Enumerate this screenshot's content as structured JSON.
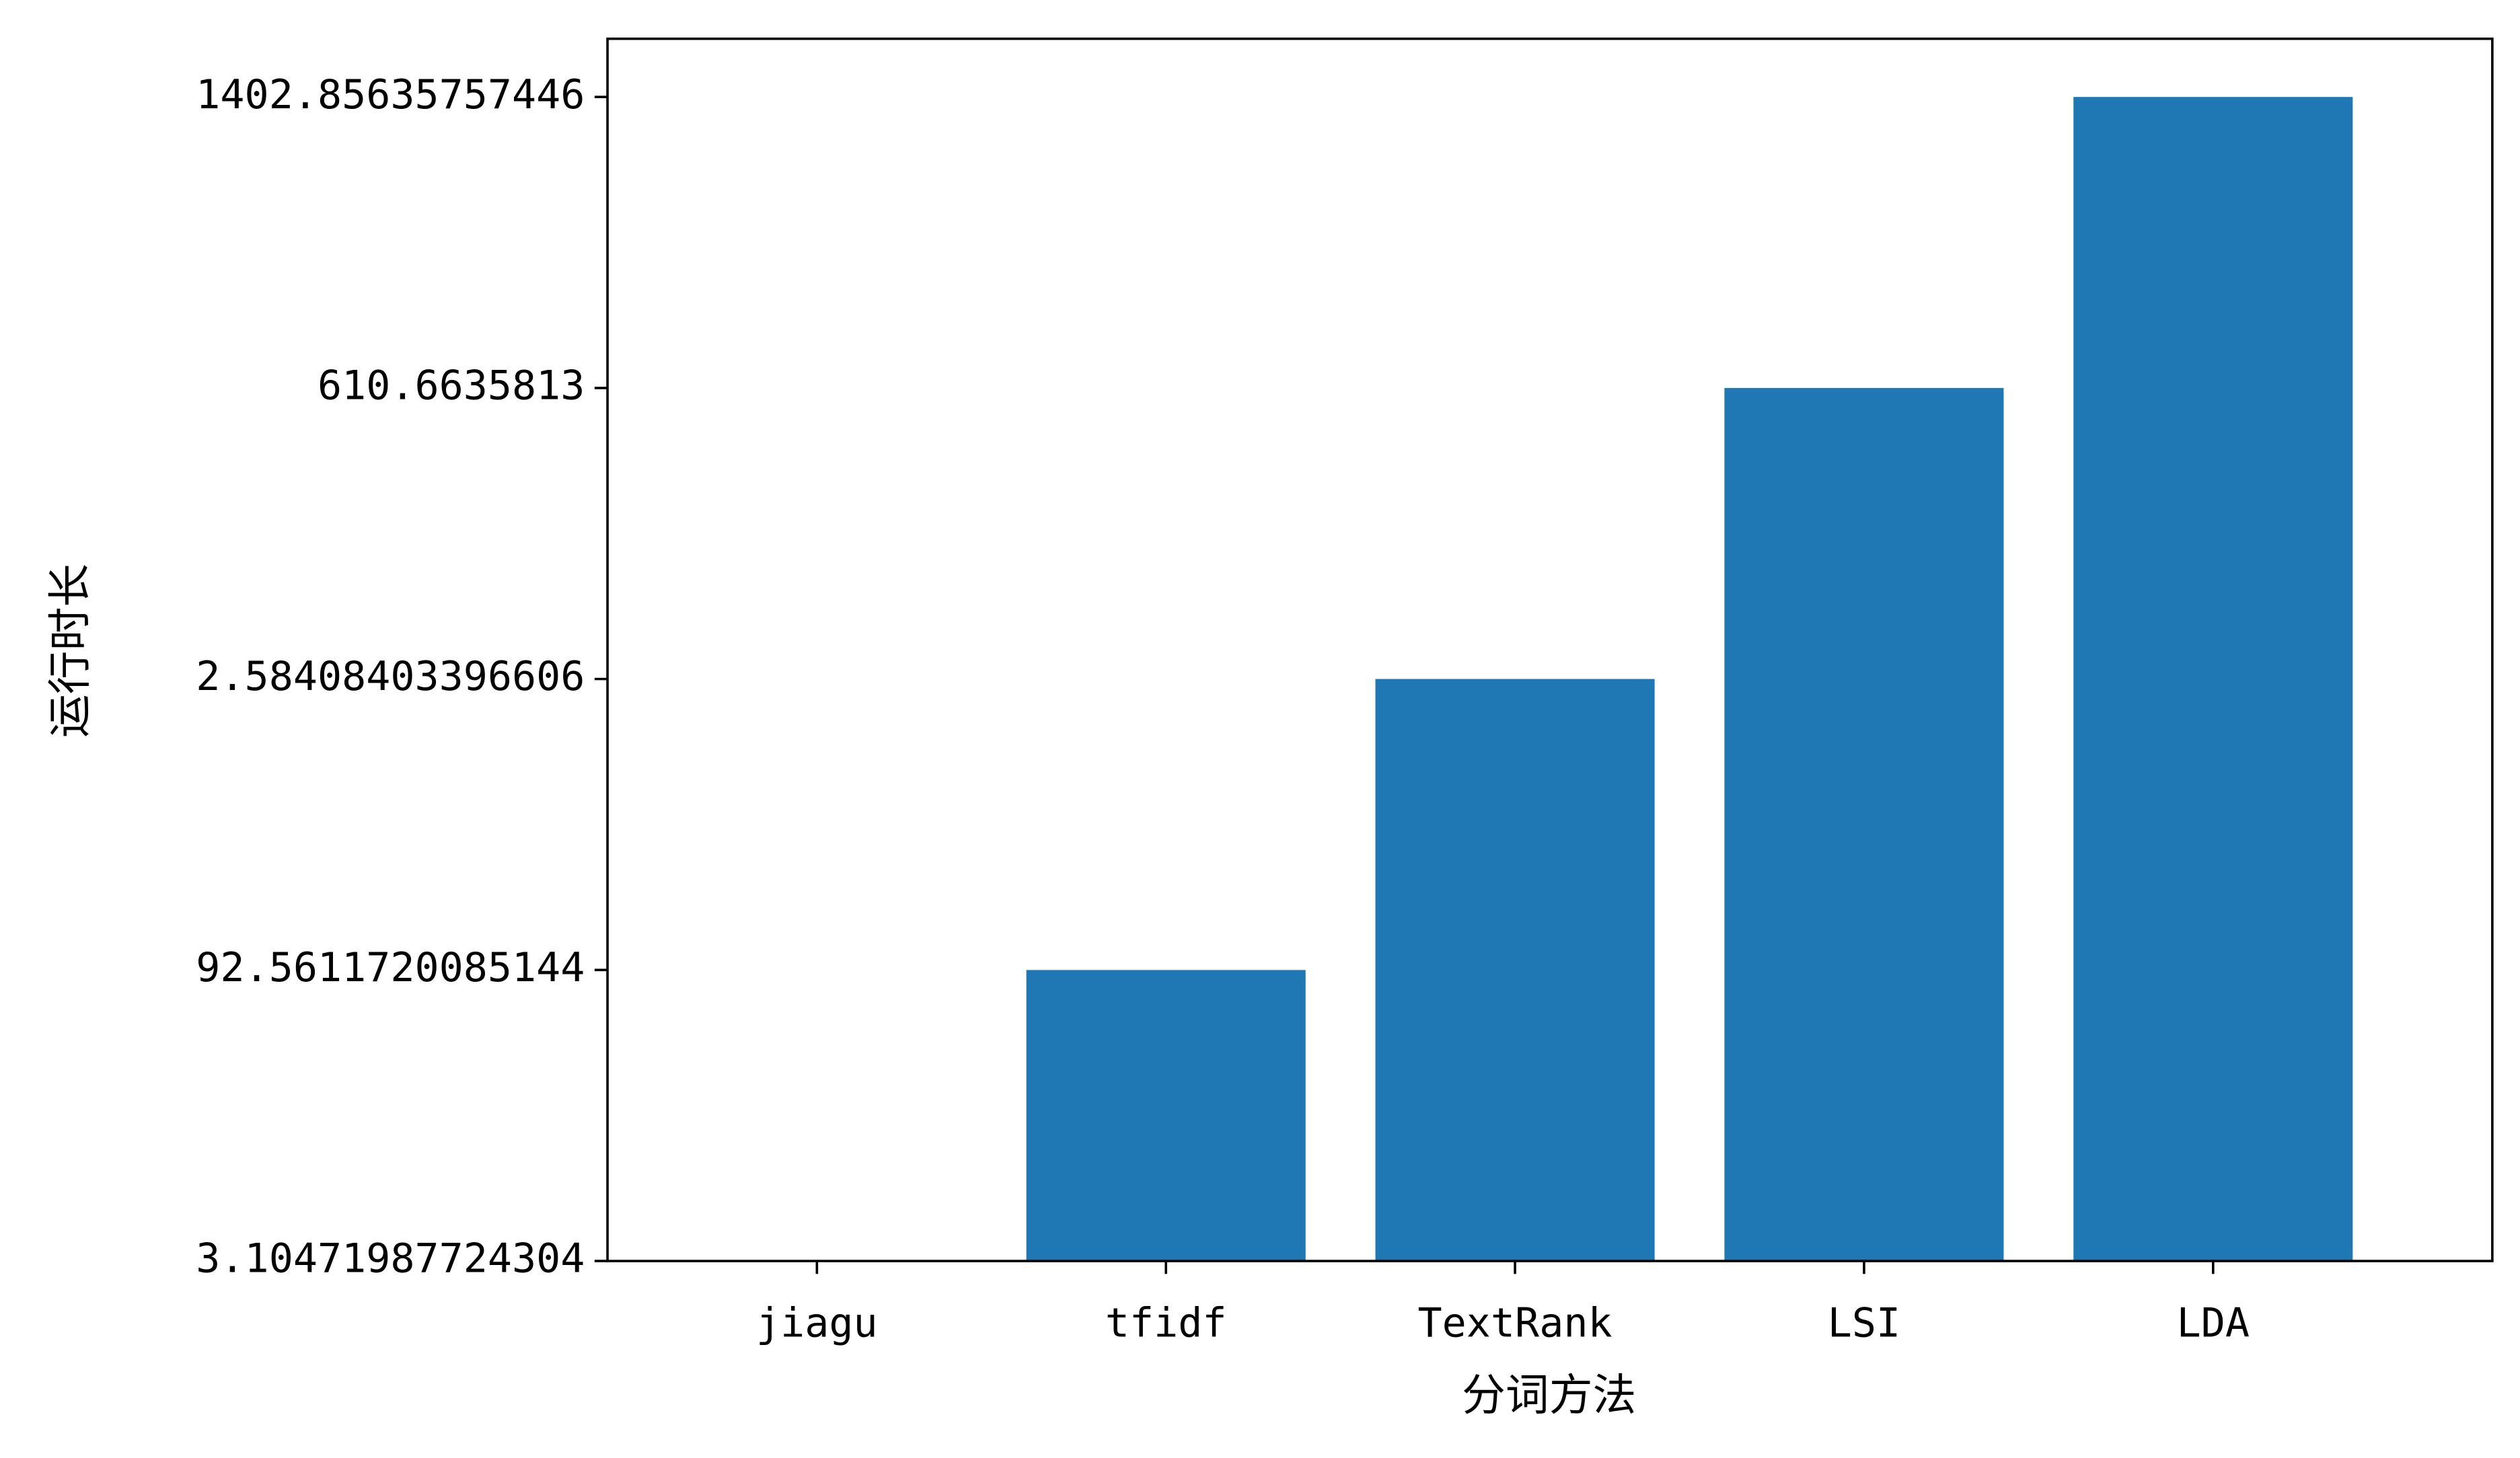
{
  "chart_data": {
    "type": "bar",
    "x_label": "分词方法",
    "y_label": "运行时长",
    "categories": [
      "jiagu",
      "tfidf",
      "TextRank",
      "LSI",
      "LDA"
    ],
    "values": [
      3.10471987724304,
      92.5611720085144,
      2.58408403396606,
      610.6635813,
      1402.85635757446
    ],
    "y_categories": [
      3.10471987724304,
      92.5611720085144,
      2.58408403396606,
      610.6635813,
      1402.85635757446
    ],
    "color": "#1f77b4",
    "grid": false
  }
}
